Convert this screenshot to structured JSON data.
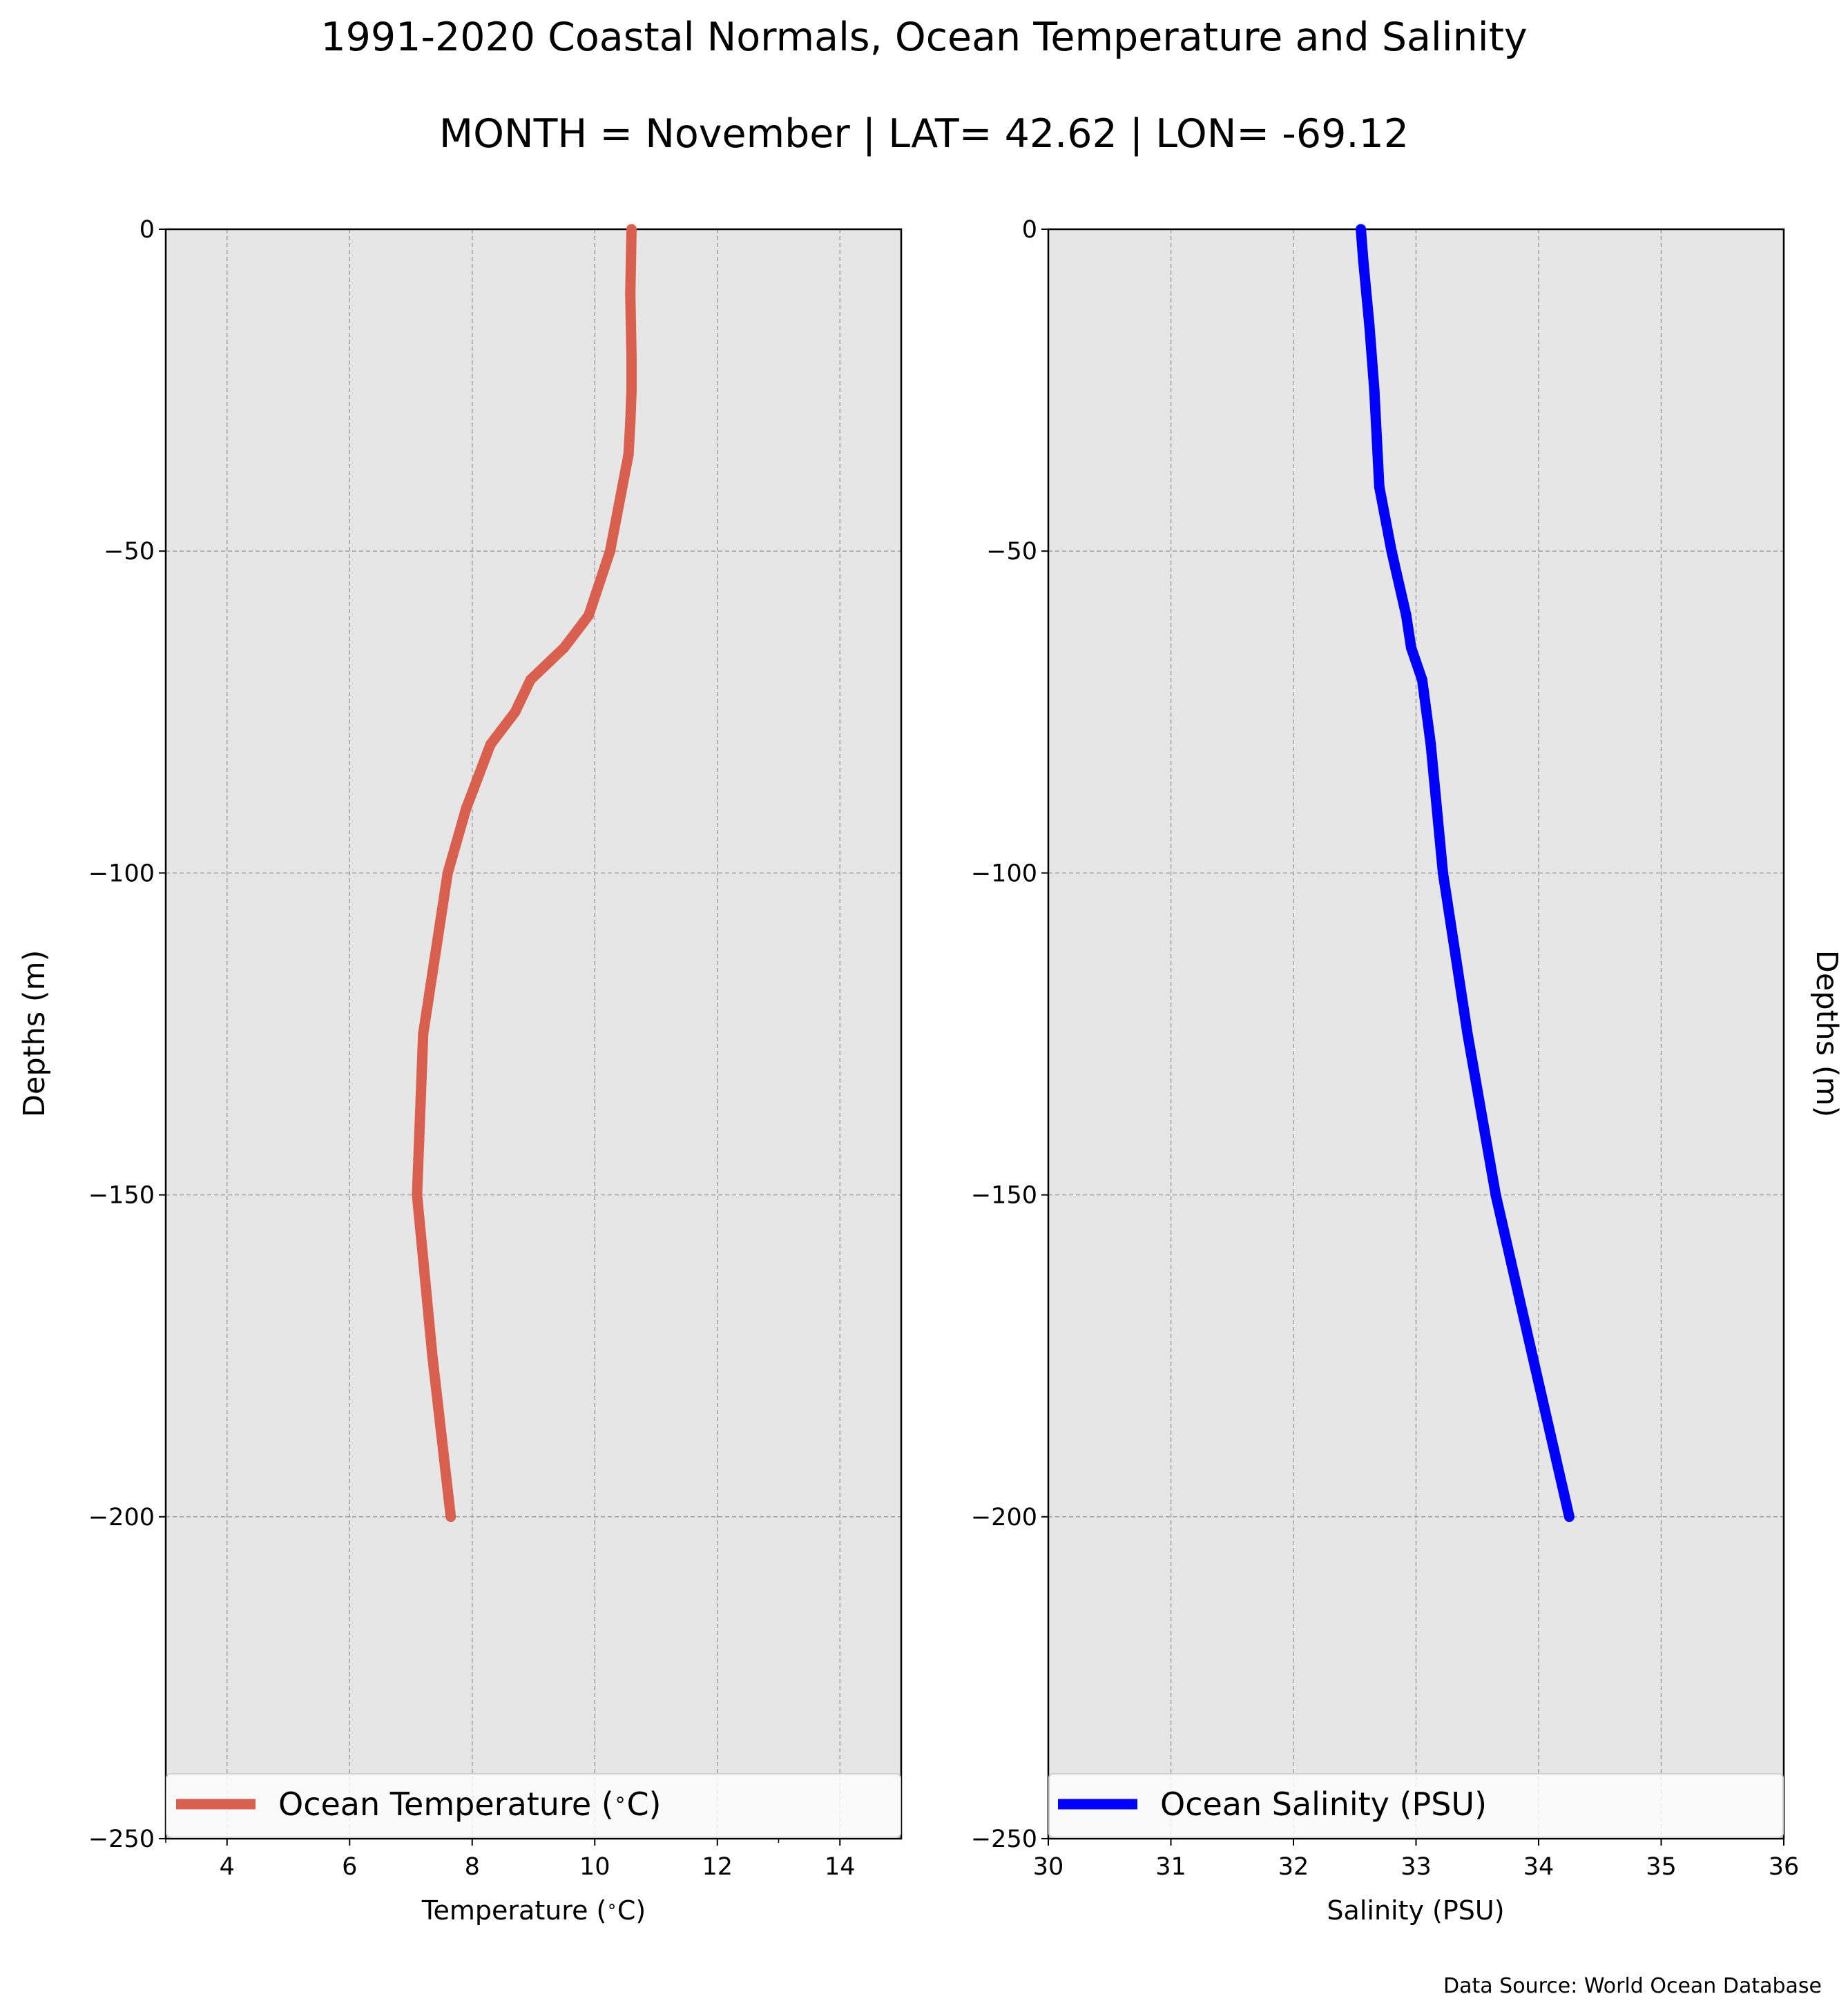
{
  "figure": {
    "title": "1991-2020 Coastal Normals, Ocean Temperature and Salinity",
    "subtitle": "MONTH = November | LAT= 42.62 | LON= -69.12",
    "source": "Data Source: World Ocean Database"
  },
  "chart_data": [
    {
      "type": "line",
      "xlabel": "Temperature ($^\\circ$C)",
      "ylabel": "Depths (m)",
      "xlim": [
        3,
        15
      ],
      "ylim": [
        -250,
        0
      ],
      "xticks": [
        "4",
        "6",
        "8",
        "10",
        "12",
        "14"
      ],
      "yticks": [
        "0",
        "−50",
        "−100",
        "−150",
        "−200",
        "−250"
      ],
      "grid": true,
      "legend_position": "lower-center",
      "color": "#d9604f",
      "series": [
        {
          "name": "Ocean Temperature ($^\\circ$C)",
          "x": [
            10.6,
            10.58,
            10.6,
            10.6,
            10.58,
            10.55,
            10.45,
            10.25,
            9.9,
            9.5,
            8.95,
            8.7,
            8.3,
            7.9,
            7.6,
            7.2,
            7.1,
            7.35,
            7.65
          ],
          "y": [
            0,
            -10,
            -20,
            -25,
            -30,
            -35,
            -40,
            -50,
            -60,
            -65,
            -70,
            -75,
            -80,
            -90,
            -100,
            -125,
            -150,
            -175,
            -200
          ]
        }
      ]
    },
    {
      "type": "line",
      "xlabel": "Salinity (PSU)",
      "ylabel": "Depths (m)",
      "xlim": [
        30,
        36
      ],
      "ylim": [
        -250,
        0
      ],
      "xticks": [
        "30",
        "31",
        "32",
        "33",
        "34",
        "35",
        "36"
      ],
      "yticks": [
        "0",
        "−50",
        "−100",
        "−150",
        "−200",
        "−250"
      ],
      "grid": true,
      "legend_position": "lower-center",
      "color": "#0000ff",
      "series": [
        {
          "name": "Ocean Salinity (PSU)",
          "x": [
            32.55,
            32.57,
            32.62,
            32.66,
            32.7,
            32.8,
            32.92,
            32.96,
            33.05,
            33.12,
            33.22,
            33.42,
            33.65,
            33.95,
            34.25
          ],
          "y": [
            0,
            -5,
            -15,
            -25,
            -40,
            -50,
            -60,
            -65,
            -70,
            -80,
            -100,
            -125,
            -150,
            -175,
            -200
          ]
        }
      ]
    }
  ]
}
